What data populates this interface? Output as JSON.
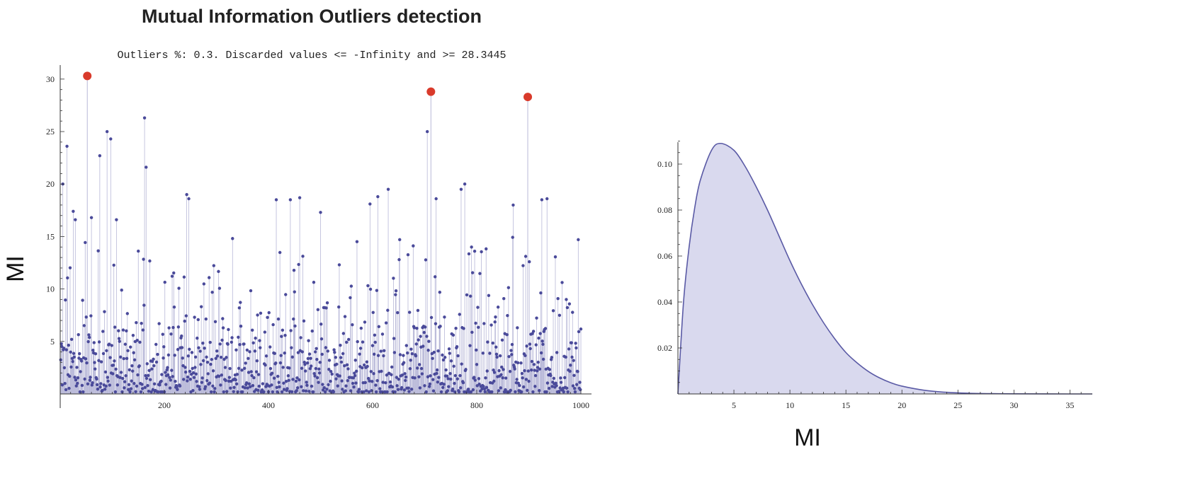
{
  "figure": {
    "title": "Mutual Information Outliers detection",
    "subtitle": "Outliers %: 0.3. Discarded values <= -Infinity and >= 28.3445",
    "left_ylabel": "MI",
    "right_xlabel": "MI"
  },
  "colors": {
    "points": "#4a4a9a",
    "stems": "#b8b8d8",
    "fill": "#d9d9ee",
    "curve": "#5a5aa5",
    "outliers": "#d93a2b"
  },
  "chart_data": [
    {
      "type": "scatter",
      "title": "Mutual Information Outliers detection",
      "subtitle": "Outliers %: 0.3. Discarded values <= -Infinity and >= 28.3445",
      "xlabel": "",
      "ylabel": "MI",
      "xlim": [
        0,
        1000
      ],
      "ylim": [
        0,
        31
      ],
      "xticks": [
        200,
        400,
        600,
        800,
        1000
      ],
      "yticks": [
        5,
        10,
        15,
        20,
        25,
        30
      ],
      "n_points": 1000,
      "outliers": [
        {
          "x": 52,
          "y": 30.3
        },
        {
          "x": 712,
          "y": 28.8
        },
        {
          "x": 898,
          "y": 28.3
        }
      ],
      "notable_points": [
        {
          "x": 5,
          "y": 20.0
        },
        {
          "x": 13,
          "y": 23.6
        },
        {
          "x": 25,
          "y": 17.4
        },
        {
          "x": 29,
          "y": 16.6
        },
        {
          "x": 60,
          "y": 16.8
        },
        {
          "x": 76,
          "y": 22.7
        },
        {
          "x": 90,
          "y": 25.0
        },
        {
          "x": 97,
          "y": 24.3
        },
        {
          "x": 108,
          "y": 16.6
        },
        {
          "x": 162,
          "y": 26.3
        },
        {
          "x": 165,
          "y": 21.6
        },
        {
          "x": 243,
          "y": 19.0
        },
        {
          "x": 247,
          "y": 18.6
        },
        {
          "x": 415,
          "y": 18.5
        },
        {
          "x": 442,
          "y": 18.5
        },
        {
          "x": 460,
          "y": 18.7
        },
        {
          "x": 500,
          "y": 17.3
        },
        {
          "x": 595,
          "y": 18.1
        },
        {
          "x": 610,
          "y": 18.8
        },
        {
          "x": 630,
          "y": 19.5
        },
        {
          "x": 705,
          "y": 25.0
        },
        {
          "x": 722,
          "y": 18.6
        },
        {
          "x": 770,
          "y": 19.5
        },
        {
          "x": 777,
          "y": 20.0
        },
        {
          "x": 870,
          "y": 18.0
        },
        {
          "x": 925,
          "y": 18.5
        },
        {
          "x": 935,
          "y": 18.6
        },
        {
          "x": 995,
          "y": 14.7
        }
      ]
    },
    {
      "type": "area",
      "title": "",
      "xlabel": "MI",
      "ylabel": "",
      "xlim": [
        0,
        37
      ],
      "ylim": [
        0,
        0.112
      ],
      "xticks": [
        5,
        10,
        15,
        20,
        25,
        30,
        35
      ],
      "yticks": [
        0.02,
        0.04,
        0.06,
        0.08,
        0.1
      ],
      "x": [
        0,
        0.5,
        1,
        1.5,
        2,
        3,
        3.8,
        5,
        6,
        7,
        8,
        9,
        10,
        11,
        12,
        13,
        14,
        15,
        16,
        17,
        18,
        19,
        20,
        22,
        24,
        26,
        28,
        30,
        33,
        37
      ],
      "y": [
        0,
        0.04,
        0.064,
        0.081,
        0.093,
        0.106,
        0.109,
        0.106,
        0.099,
        0.09,
        0.08,
        0.069,
        0.058,
        0.048,
        0.039,
        0.031,
        0.024,
        0.018,
        0.0135,
        0.0098,
        0.007,
        0.0049,
        0.0034,
        0.0016,
        0.0007,
        0.0003,
        0.00012,
        5e-05,
        1e-05,
        0
      ]
    }
  ]
}
